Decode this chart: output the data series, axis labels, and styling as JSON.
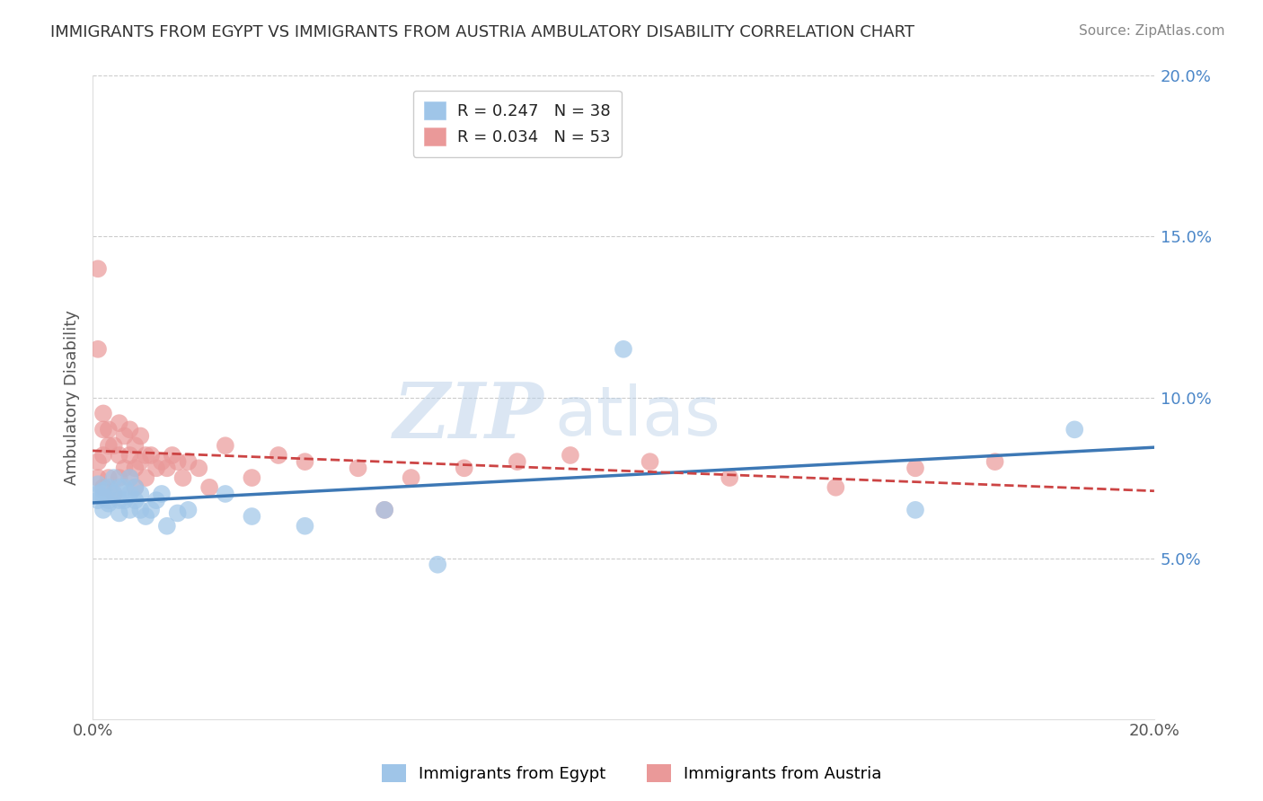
{
  "title": "IMMIGRANTS FROM EGYPT VS IMMIGRANTS FROM AUSTRIA AMBULATORY DISABILITY CORRELATION CHART",
  "source": "Source: ZipAtlas.com",
  "ylabel": "Ambulatory Disability",
  "xlim": [
    0.0,
    0.2
  ],
  "ylim": [
    0.0,
    0.2
  ],
  "ytick_values": [
    0.05,
    0.1,
    0.15,
    0.2
  ],
  "ytick_labels": [
    "5.0%",
    "10.0%",
    "15.0%",
    "20.0%"
  ],
  "legend1_label": "R = 0.247   N = 38",
  "legend2_label": "R = 0.034   N = 53",
  "bottom_legend1": "Immigrants from Egypt",
  "bottom_legend2": "Immigrants from Austria",
  "egypt_scatter_color": "#9fc5e8",
  "austria_scatter_color": "#ea9999",
  "egypt_line_color": "#3d78b5",
  "austria_line_color": "#cc4444",
  "right_ytick_color": "#4a86c8",
  "grid_color": "#cccccc",
  "egypt_x": [
    0.001,
    0.001,
    0.001,
    0.002,
    0.002,
    0.002,
    0.003,
    0.003,
    0.003,
    0.004,
    0.004,
    0.005,
    0.005,
    0.005,
    0.006,
    0.006,
    0.007,
    0.007,
    0.007,
    0.008,
    0.008,
    0.009,
    0.009,
    0.01,
    0.011,
    0.012,
    0.013,
    0.014,
    0.016,
    0.018,
    0.025,
    0.03,
    0.04,
    0.055,
    0.065,
    0.1,
    0.155,
    0.185
  ],
  "egypt_y": [
    0.073,
    0.068,
    0.07,
    0.071,
    0.065,
    0.069,
    0.068,
    0.072,
    0.067,
    0.07,
    0.075,
    0.072,
    0.068,
    0.064,
    0.068,
    0.072,
    0.065,
    0.07,
    0.075,
    0.068,
    0.072,
    0.07,
    0.065,
    0.063,
    0.065,
    0.068,
    0.07,
    0.06,
    0.064,
    0.065,
    0.07,
    0.063,
    0.06,
    0.065,
    0.048,
    0.115,
    0.065,
    0.09
  ],
  "austria_x": [
    0.001,
    0.001,
    0.001,
    0.001,
    0.002,
    0.002,
    0.002,
    0.002,
    0.003,
    0.003,
    0.003,
    0.004,
    0.004,
    0.005,
    0.005,
    0.005,
    0.006,
    0.006,
    0.007,
    0.007,
    0.007,
    0.008,
    0.008,
    0.008,
    0.009,
    0.009,
    0.01,
    0.01,
    0.011,
    0.012,
    0.013,
    0.014,
    0.015,
    0.016,
    0.017,
    0.018,
    0.02,
    0.022,
    0.025,
    0.03,
    0.035,
    0.04,
    0.05,
    0.055,
    0.06,
    0.07,
    0.08,
    0.09,
    0.105,
    0.12,
    0.14,
    0.155,
    0.17
  ],
  "austria_y": [
    0.14,
    0.115,
    0.08,
    0.075,
    0.095,
    0.09,
    0.082,
    0.072,
    0.09,
    0.085,
    0.075,
    0.085,
    0.07,
    0.092,
    0.082,
    0.075,
    0.088,
    0.078,
    0.09,
    0.082,
    0.075,
    0.085,
    0.078,
    0.072,
    0.088,
    0.08,
    0.082,
    0.075,
    0.082,
    0.078,
    0.08,
    0.078,
    0.082,
    0.08,
    0.075,
    0.08,
    0.078,
    0.072,
    0.085,
    0.075,
    0.082,
    0.08,
    0.078,
    0.065,
    0.075,
    0.078,
    0.08,
    0.082,
    0.08,
    0.075,
    0.072,
    0.078,
    0.08
  ],
  "watermark_zip": "ZIP",
  "watermark_atlas": "atlas",
  "title_fontsize": 13,
  "source_fontsize": 11,
  "tick_fontsize": 13,
  "legend_fontsize": 13
}
